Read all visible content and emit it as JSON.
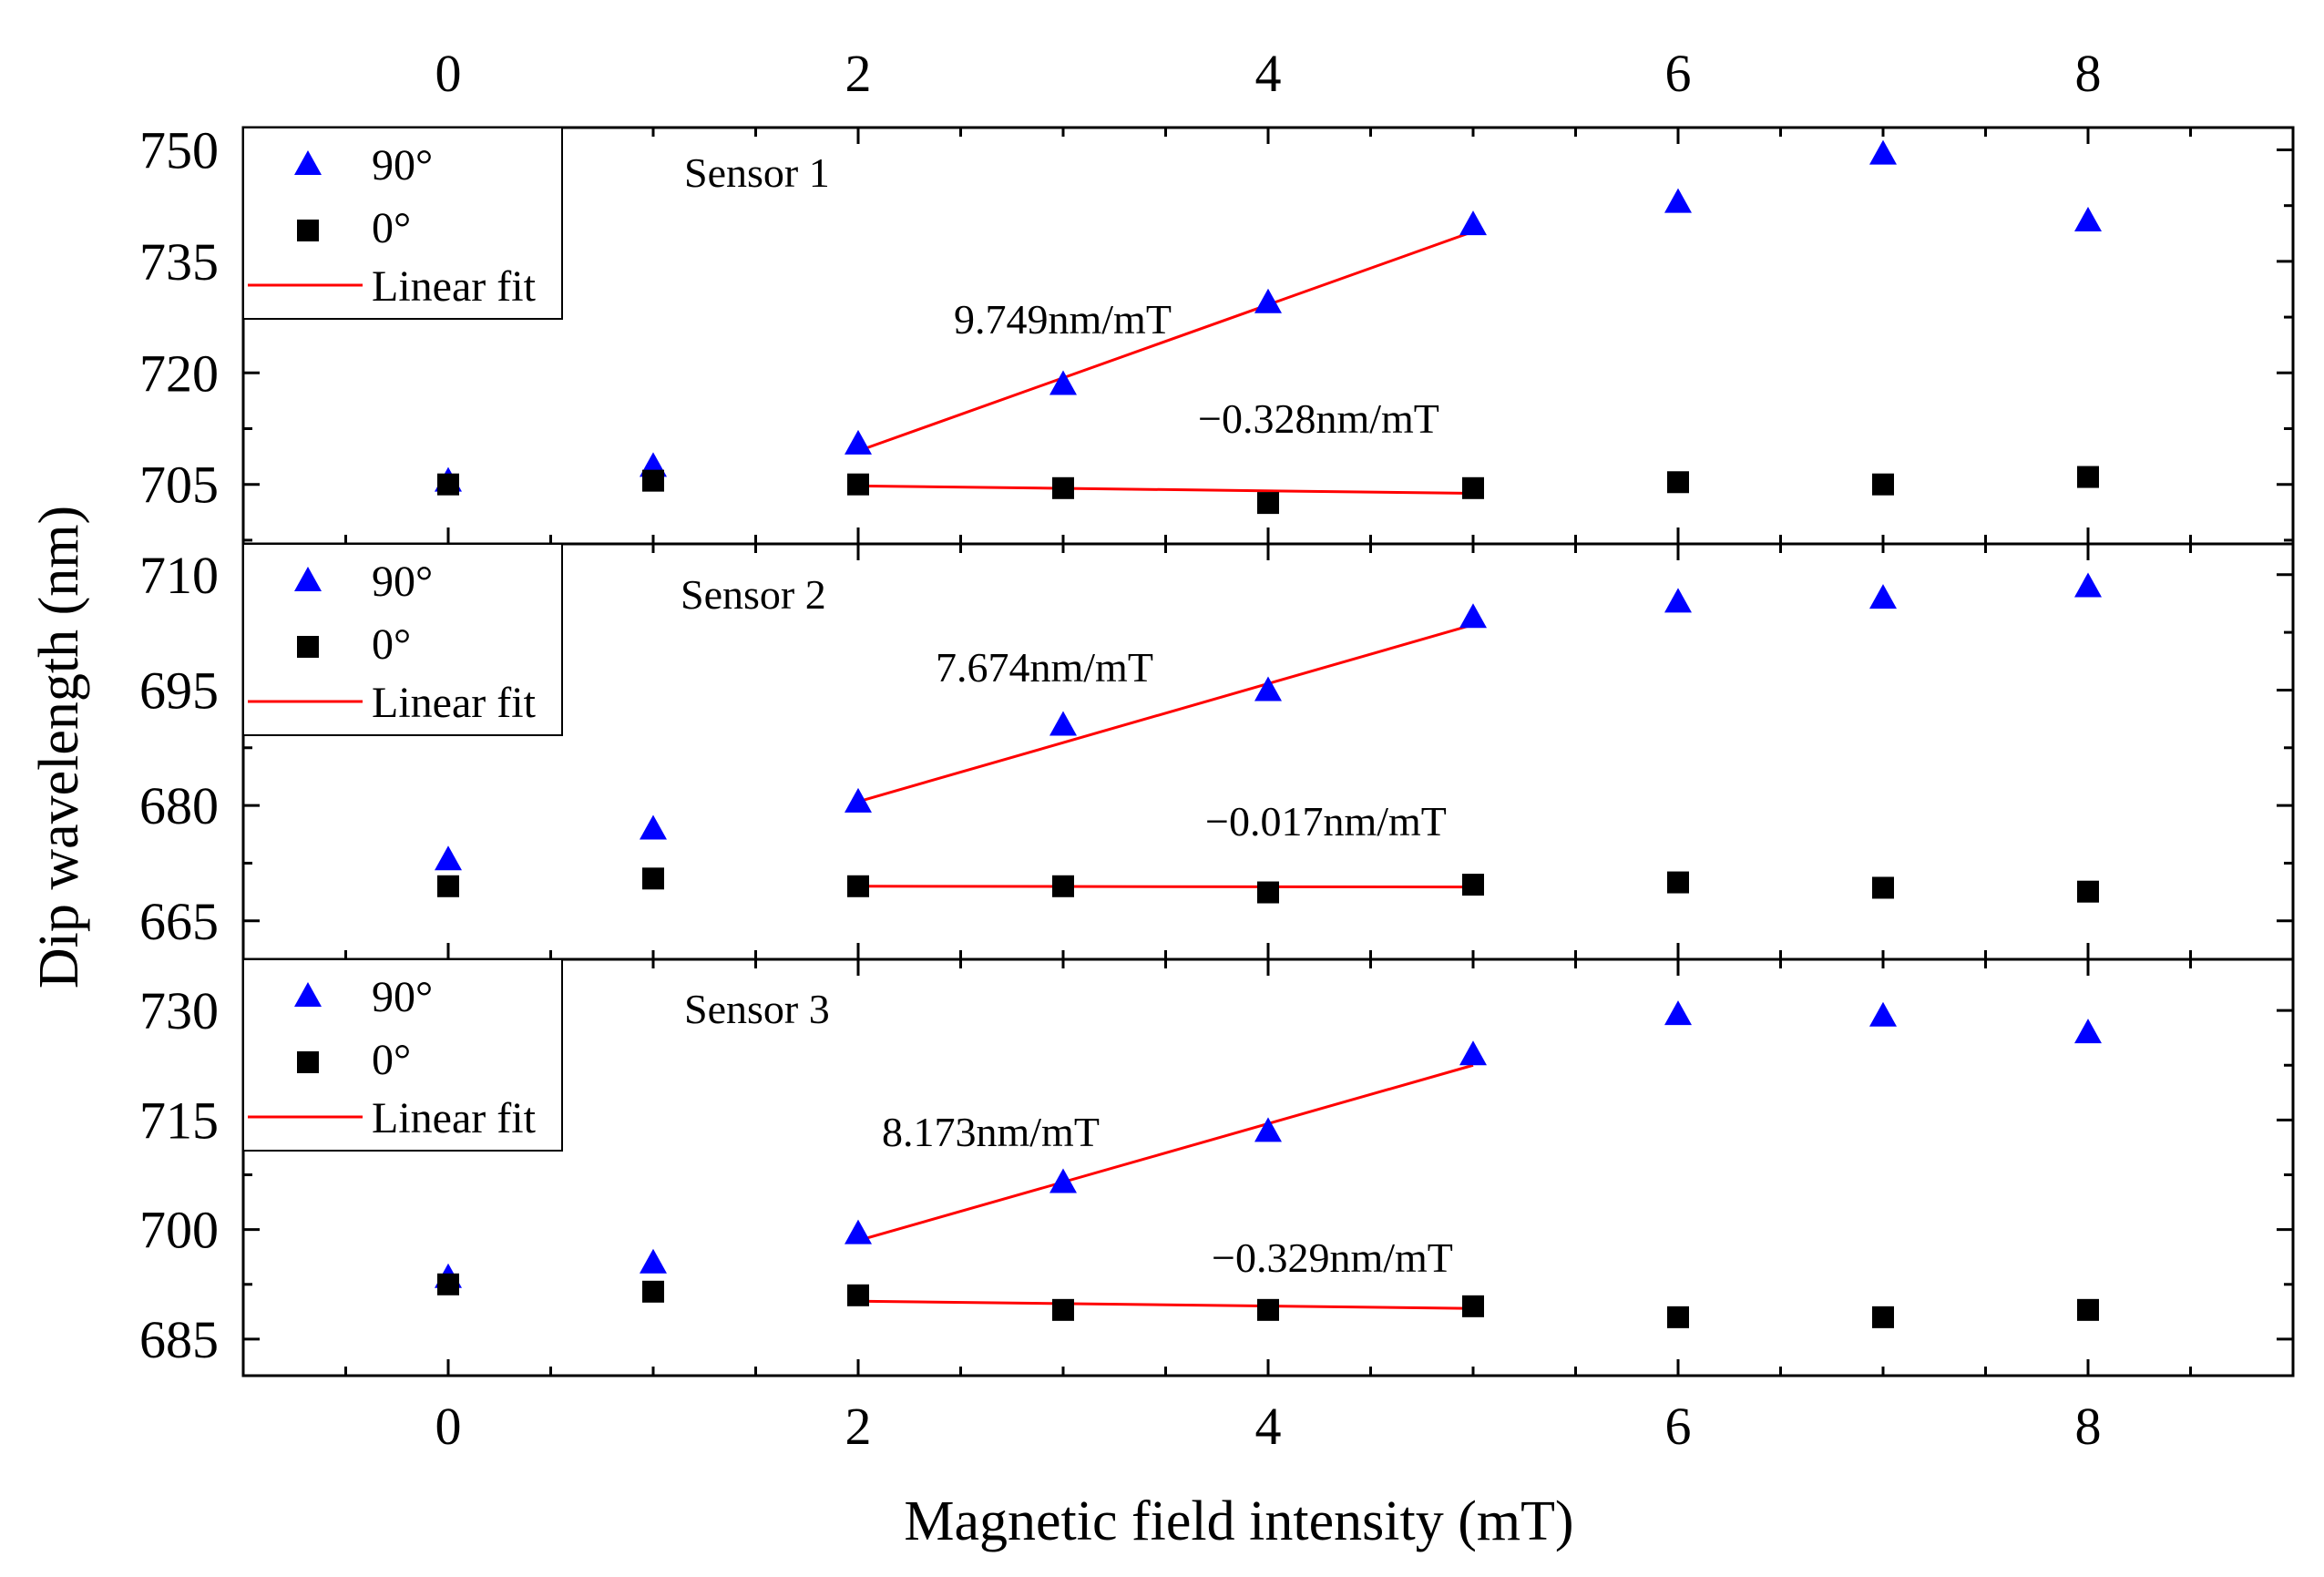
{
  "chart_data": {
    "type": "scatter",
    "xlabel": "Magnetic field intensity (mT)",
    "ylabel": "Dip wavelength (nm)",
    "xlim": [
      -1,
      9
    ],
    "x_ticks": [
      "0",
      "2",
      "4",
      "6",
      "8"
    ],
    "legend": {
      "placement": "top-left",
      "entries": [
        {
          "label": "90°",
          "marker": "triangle",
          "color": "#0000ff"
        },
        {
          "label": "0°",
          "marker": "square",
          "color": "#000000"
        },
        {
          "label": "Linear fit",
          "marker": "line",
          "color": "#ff0000"
        }
      ]
    },
    "panels": [
      {
        "title": "Sensor 1",
        "ylim": [
          697,
          753
        ],
        "y_ticks": [
          "705",
          "720",
          "735",
          "750"
        ],
        "x": [
          0,
          1,
          2,
          3,
          4,
          5,
          6,
          7,
          8
        ],
        "series": [
          {
            "name": "90°",
            "values": [
              705.5,
              707.5,
              710.5,
              718.5,
              729.5,
              740,
              743,
              749.5,
              740.5
            ]
          },
          {
            "name": "0°",
            "values": [
              705,
              705.5,
              705,
              704.5,
              702.5,
              704.5,
              705.3,
              705,
              706
            ]
          }
        ],
        "fits": [
          {
            "series": "90°",
            "x_range": [
              2,
              5
            ],
            "y_range": [
              709.5,
              739
            ],
            "label": "9.749nm/mT"
          },
          {
            "series": "0°",
            "x_range": [
              2,
              5
            ],
            "y_range": [
              704.8,
              703.8
            ],
            "label": "−0.328nm/mT"
          }
        ]
      },
      {
        "title": "Sensor 2",
        "ylim": [
          660,
          714
        ],
        "y_ticks": [
          "665",
          "680",
          "695",
          "710"
        ],
        "x": [
          0,
          1,
          2,
          3,
          4,
          5,
          6,
          7,
          8
        ],
        "series": [
          {
            "name": "90°",
            "values": [
              673,
              677,
              680.5,
              690.5,
              695,
              704.5,
              706.5,
              707,
              708.5
            ]
          },
          {
            "name": "0°",
            "values": [
              669.5,
              670.5,
              669.5,
              669.5,
              668.7,
              669.7,
              670,
              669.3,
              668.8
            ]
          }
        ],
        "fits": [
          {
            "series": "90°",
            "x_range": [
              2,
              5
            ],
            "y_range": [
              680.5,
              703.5
            ],
            "label": "7.674nm/mT"
          },
          {
            "series": "0°",
            "x_range": [
              2,
              5
            ],
            "y_range": [
              669.5,
              669.4
            ],
            "label": "−0.017nm/mT"
          }
        ]
      },
      {
        "title": "Sensor 3",
        "ylim": [
          680,
          737
        ],
        "y_ticks": [
          "685",
          "700",
          "715",
          "730"
        ],
        "x": [
          0,
          1,
          2,
          3,
          4,
          5,
          6,
          7,
          8
        ],
        "series": [
          {
            "name": "90°",
            "values": [
              693.5,
              695.5,
              699.5,
              706.5,
              713.5,
              724,
              729.5,
              729.3,
              727
            ]
          },
          {
            "name": "0°",
            "values": [
              692.5,
              691.5,
              691,
              689,
              689,
              689.5,
              688,
              688,
              689
            ]
          }
        ],
        "fits": [
          {
            "series": "90°",
            "x_range": [
              2,
              5
            ],
            "y_range": [
              698.5,
              722.5
            ],
            "label": "8.173nm/mT"
          },
          {
            "series": "0°",
            "x_range": [
              2,
              5
            ],
            "y_range": [
              690.2,
              689.2
            ],
            "label": "−0.329nm/mT"
          }
        ]
      }
    ]
  }
}
